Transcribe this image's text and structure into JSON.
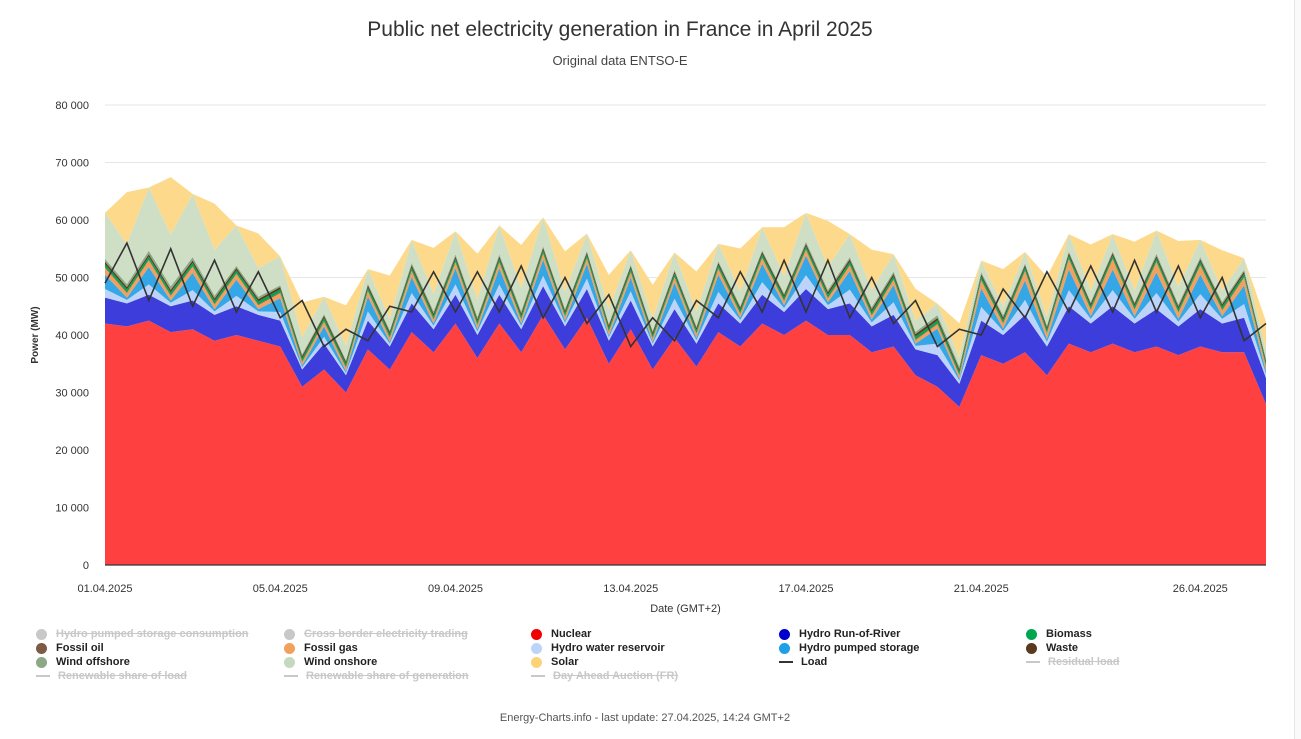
{
  "chart_data": {
    "type": "area",
    "title": "Public net electricity generation in France in April 2025",
    "subtitle": "Original data ENTSO-E",
    "xlabel": "Date (GMT+2)",
    "ylabel": "Power (MW)",
    "ylim": [
      0,
      80000
    ],
    "yticks": [
      "0",
      "10 000",
      "20 000",
      "30 000",
      "40 000",
      "50 000",
      "60 000",
      "70 000",
      "80 000"
    ],
    "xticks": [
      "01.04.2025",
      "05.04.2025",
      "09.04.2025",
      "13.04.2025",
      "17.04.2025",
      "21.04.2025",
      "26.04.2025"
    ],
    "grid": true,
    "legend_placement": "bottom",
    "x_days": [
      1,
      1.5,
      2,
      2.5,
      3,
      3.5,
      4,
      4.5,
      5,
      5.5,
      6,
      6.5,
      7,
      7.5,
      8,
      8.5,
      9,
      9.5,
      10,
      10.5,
      11,
      11.5,
      12,
      12.5,
      13,
      13.5,
      14,
      14.5,
      15,
      15.5,
      16,
      16.5,
      17,
      17.5,
      18,
      18.5,
      19,
      19.5,
      20,
      20.5,
      21,
      21.5,
      22,
      22.5,
      23,
      23.5,
      24,
      24.5,
      25,
      25.5,
      26,
      26.5,
      27,
      27.5
    ],
    "series": [
      {
        "name": "Nuclear",
        "color": "#ff4040",
        "values": [
          42000,
          41500,
          42500,
          40500,
          41000,
          39000,
          40000,
          39000,
          38000,
          31000,
          34000,
          30000,
          37500,
          34000,
          40500,
          37000,
          42000,
          36000,
          42000,
          37000,
          43500,
          37500,
          43000,
          35000,
          41000,
          34000,
          39500,
          34500,
          40500,
          38000,
          42000,
          40000,
          42500,
          40000,
          40000,
          37000,
          38000,
          33000,
          31000,
          27500,
          36500,
          35000,
          37000,
          33000,
          38500,
          37000,
          38500,
          37000,
          38000,
          36500,
          38000,
          37000,
          37000,
          28000
        ]
      },
      {
        "name": "Hydro Run-of-River",
        "color": "#3d3ddb",
        "values": [
          4500,
          4000,
          4500,
          4500,
          5000,
          4500,
          5000,
          4500,
          4500,
          3000,
          4500,
          3000,
          5000,
          4000,
          5000,
          4000,
          5000,
          4000,
          5000,
          4000,
          5000,
          4000,
          5000,
          4000,
          5000,
          4000,
          5000,
          4000,
          5000,
          4000,
          5000,
          4000,
          5500,
          4500,
          5500,
          4500,
          5500,
          4500,
          5500,
          4000,
          6000,
          5000,
          6500,
          5000,
          6500,
          5000,
          6500,
          5000,
          6500,
          5000,
          6500,
          5000,
          6000,
          4500
        ]
      },
      {
        "name": "Hydro water reservoir",
        "color": "#bcd4fa",
        "values": [
          1500,
          600,
          1800,
          600,
          1800,
          600,
          1800,
          600,
          1500,
          400,
          1200,
          400,
          1600,
          500,
          1800,
          600,
          1800,
          600,
          1800,
          600,
          1800,
          600,
          1800,
          600,
          1600,
          500,
          1800,
          600,
          2000,
          600,
          2200,
          700,
          2400,
          700,
          2400,
          700,
          2200,
          600,
          2000,
          600,
          2400,
          700,
          2600,
          800,
          2800,
          800,
          2800,
          800,
          2800,
          800,
          2600,
          800,
          2400,
          700
        ]
      },
      {
        "name": "Hydro pumped storage",
        "color": "#35a6e6",
        "values": [
          2500,
          400,
          3000,
          400,
          3000,
          400,
          2800,
          400,
          2400,
          300,
          1800,
          300,
          2600,
          300,
          2800,
          400,
          2800,
          400,
          2800,
          400,
          2800,
          400,
          2600,
          300,
          2400,
          300,
          2800,
          400,
          3000,
          400,
          3200,
          500,
          3400,
          500,
          3200,
          500,
          3000,
          400,
          2600,
          300,
          3200,
          400,
          3400,
          500,
          3600,
          500,
          3600,
          500,
          3600,
          500,
          3400,
          500,
          3200,
          400
        ]
      },
      {
        "name": "Fossil gas",
        "color": "#f1a15e",
        "values": [
          1200,
          800,
          1200,
          800,
          1100,
          800,
          1000,
          700,
          900,
          600,
          800,
          600,
          900,
          700,
          1000,
          700,
          1000,
          700,
          1000,
          700,
          1000,
          700,
          900,
          700,
          900,
          600,
          900,
          700,
          1000,
          700,
          1000,
          700,
          1000,
          700,
          1000,
          700,
          900,
          600,
          800,
          600,
          1400,
          900,
          1600,
          1000,
          1800,
          1100,
          1800,
          1100,
          1800,
          1100,
          1600,
          1000,
          1400,
          900
        ]
      },
      {
        "name": "Fossil oil",
        "color": "#7b5b43",
        "values": [
          150,
          150,
          150,
          150,
          150,
          150,
          150,
          150,
          150,
          150,
          150,
          150,
          150,
          150,
          150,
          150,
          150,
          150,
          150,
          150,
          150,
          150,
          150,
          150,
          150,
          150,
          150,
          150,
          150,
          150,
          150,
          150,
          150,
          150,
          150,
          150,
          150,
          150,
          150,
          150,
          150,
          150,
          150,
          150,
          150,
          150,
          150,
          150,
          150,
          150,
          150,
          150,
          150,
          150
        ]
      },
      {
        "name": "Biomass",
        "color": "#00a64f",
        "values": [
          500,
          500,
          500,
          500,
          500,
          500,
          500,
          500,
          500,
          500,
          500,
          500,
          500,
          500,
          500,
          500,
          500,
          500,
          500,
          500,
          500,
          500,
          500,
          500,
          500,
          500,
          500,
          500,
          500,
          500,
          500,
          500,
          500,
          500,
          500,
          500,
          500,
          500,
          500,
          500,
          500,
          500,
          500,
          500,
          500,
          500,
          500,
          500,
          500,
          500,
          500,
          500,
          500,
          500
        ]
      },
      {
        "name": "Waste",
        "color": "#5b3a1b",
        "values": [
          400,
          400,
          400,
          400,
          400,
          400,
          400,
          400,
          400,
          400,
          400,
          400,
          400,
          400,
          400,
          400,
          400,
          400,
          400,
          400,
          400,
          400,
          400,
          400,
          400,
          400,
          400,
          400,
          400,
          400,
          400,
          400,
          400,
          400,
          400,
          400,
          400,
          400,
          400,
          400,
          400,
          400,
          400,
          400,
          400,
          400,
          400,
          400,
          400,
          400,
          400,
          400,
          400,
          400
        ]
      },
      {
        "name": "Wind offshore",
        "color": "#8ca887",
        "values": [
          500,
          500,
          600,
          600,
          600,
          500,
          400,
          400,
          300,
          300,
          300,
          300,
          300,
          300,
          400,
          400,
          400,
          400,
          400,
          400,
          300,
          300,
          300,
          300,
          300,
          300,
          300,
          300,
          300,
          300,
          300,
          300,
          400,
          400,
          400,
          400,
          400,
          400,
          500,
          500,
          400,
          400,
          300,
          300,
          300,
          300,
          300,
          300,
          400,
          400,
          400,
          400,
          300,
          300
        ]
      },
      {
        "name": "Wind onshore",
        "color": "#cfdfc5",
        "values": [
          8000,
          7000,
          11000,
          9000,
          11000,
          8000,
          7000,
          5000,
          5000,
          3000,
          3000,
          2500,
          2500,
          2000,
          4000,
          3000,
          4000,
          3000,
          5000,
          4000,
          5000,
          3000,
          3000,
          2500,
          2500,
          2000,
          3000,
          2500,
          3000,
          2500,
          4000,
          3000,
          5000,
          4000,
          4000,
          3000,
          3000,
          2000,
          2000,
          1500,
          2000,
          1500,
          2000,
          1500,
          3000,
          2000,
          3000,
          2000,
          4000,
          3000,
          3000,
          2000,
          2000,
          1500
        ]
      },
      {
        "name": "Solar",
        "color": "#fdd98b",
        "values": [
          0,
          9000,
          0,
          10000,
          0,
          8000,
          0,
          6000,
          0,
          6000,
          0,
          7000,
          0,
          7500,
          0,
          8000,
          0,
          8000,
          0,
          7500,
          0,
          7000,
          0,
          6000,
          0,
          6000,
          0,
          7000,
          0,
          7500,
          0,
          8500,
          0,
          8000,
          0,
          7000,
          0,
          5500,
          0,
          6000,
          0,
          6500,
          0,
          7000,
          0,
          8000,
          0,
          8500,
          0,
          8000,
          0,
          7000,
          0,
          5000
        ]
      }
    ],
    "load": {
      "name": "Load",
      "color": "#333333",
      "values": [
        49000,
        56000,
        46000,
        55000,
        45000,
        53000,
        44000,
        51000,
        43000,
        46000,
        38000,
        41000,
        39000,
        45000,
        44000,
        51000,
        44000,
        51000,
        44000,
        52000,
        43000,
        50000,
        42000,
        47000,
        38000,
        43000,
        39000,
        46000,
        43000,
        51000,
        44000,
        53000,
        44000,
        53000,
        43000,
        50000,
        42000,
        46000,
        38000,
        41000,
        40000,
        48000,
        43000,
        51000,
        44000,
        52000,
        44000,
        53000,
        44000,
        52000,
        43000,
        50000,
        39000,
        42000
      ]
    }
  },
  "legend": [
    {
      "label": "Hydro pumped storage consumption",
      "kind": "dot",
      "color": "#c8c8c8",
      "enabled": false
    },
    {
      "label": "Cross border electricity trading",
      "kind": "dot",
      "color": "#c8c8c8",
      "enabled": false
    },
    {
      "label": "Nuclear",
      "kind": "dot",
      "color": "#f00000",
      "enabled": true
    },
    {
      "label": "Hydro Run-of-River",
      "kind": "dot",
      "color": "#0000cc",
      "enabled": true
    },
    {
      "label": "Biomass",
      "kind": "dot",
      "color": "#00a64f",
      "enabled": true
    },
    {
      "label": "Fossil oil",
      "kind": "dot",
      "color": "#7b5b43",
      "enabled": true
    },
    {
      "label": "Fossil gas",
      "kind": "dot",
      "color": "#f1a15e",
      "enabled": true
    },
    {
      "label": "Hydro water reservoir",
      "kind": "dot",
      "color": "#bcd4fa",
      "enabled": true
    },
    {
      "label": "Hydro pumped storage",
      "kind": "dot",
      "color": "#1ea0e6",
      "enabled": true
    },
    {
      "label": "Waste",
      "kind": "dot",
      "color": "#5b3a1b",
      "enabled": true
    },
    {
      "label": "Wind offshore",
      "kind": "dot",
      "color": "#8ca887",
      "enabled": true
    },
    {
      "label": "Wind onshore",
      "kind": "dot",
      "color": "#c4d9bd",
      "enabled": true
    },
    {
      "label": "Solar",
      "kind": "dot",
      "color": "#fdd37a",
      "enabled": true
    },
    {
      "label": "Load",
      "kind": "line",
      "color": "#333333",
      "enabled": true
    },
    {
      "label": "Residual load",
      "kind": "line",
      "color": "#c8c8c8",
      "enabled": false
    },
    {
      "label": "Renewable share of load",
      "kind": "line",
      "color": "#c8c8c8",
      "enabled": false
    },
    {
      "label": "Renewable share of generation",
      "kind": "line",
      "color": "#c8c8c8",
      "enabled": false
    },
    {
      "label": "Day Ahead Auction (FR)",
      "kind": "line",
      "color": "#c8c8c8",
      "enabled": false
    }
  ],
  "footer": "Energy-Charts.info - last update: 27.04.2025, 14:24 GMT+2"
}
